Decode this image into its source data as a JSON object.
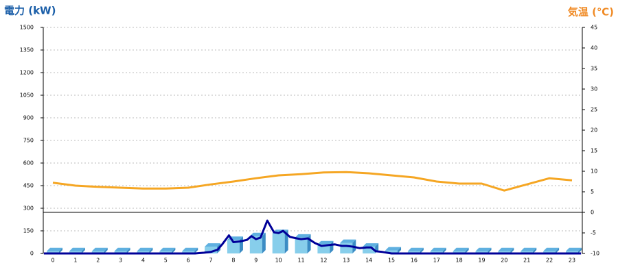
{
  "chart_data": {
    "type": "bar-line",
    "title": "電力 (kW)",
    "y2_title": "気温 (℃)",
    "categories": [
      "0",
      "1",
      "2",
      "3",
      "4",
      "5",
      "6",
      "7",
      "8",
      "9",
      "10",
      "11",
      "12",
      "13",
      "14",
      "15",
      "16",
      "17",
      "18",
      "19",
      "20",
      "21",
      "22",
      "23"
    ],
    "ylim": [
      0,
      1500
    ],
    "yticks": [
      0,
      150,
      300,
      450,
      600,
      750,
      900,
      1050,
      1200,
      1350,
      1500
    ],
    "y2lim": [
      -10,
      45
    ],
    "y2ticks": [
      -10,
      -5,
      0,
      5,
      10,
      15,
      20,
      25,
      30,
      35,
      40,
      45
    ],
    "grid": true,
    "series": [
      {
        "type": "bar",
        "color": "#87ceeb",
        "values": [
          15,
          15,
          15,
          15,
          15,
          15,
          15,
          45,
          90,
          115,
          135,
          105,
          60,
          70,
          45,
          20,
          15,
          15,
          15,
          15,
          15,
          15,
          15,
          15
        ]
      },
      {
        "type": "line",
        "color": "#000099",
        "x": [
          -0.4,
          6.3,
          6.7,
          7,
          7.3,
          7.5,
          7.8,
          8,
          8.3,
          8.6,
          8.8,
          9,
          9.2,
          9.5,
          9.8,
          10,
          10.2,
          10.5,
          10.8,
          11,
          11.3,
          11.6,
          11.9,
          12.2,
          12.5,
          12.8,
          13,
          13.3,
          13.6,
          13.9,
          14.1,
          14.3,
          14.6,
          15,
          23.4
        ],
        "values": [
          0,
          0,
          5,
          10,
          25,
          60,
          120,
          75,
          80,
          90,
          115,
          95,
          105,
          218,
          140,
          135,
          150,
          110,
          100,
          95,
          100,
          70,
          50,
          55,
          60,
          50,
          50,
          45,
          35,
          40,
          40,
          15,
          10,
          0,
          0
        ]
      },
      {
        "type": "line",
        "axis": "y2",
        "color": "#f5a623",
        "values": [
          7.2,
          6.5,
          6.2,
          6,
          5.8,
          5.8,
          6,
          6.8,
          7.5,
          8.3,
          9,
          9.3,
          9.7,
          9.8,
          9.5,
          9,
          8.5,
          7.5,
          7,
          7,
          5.3,
          6.8,
          8.3,
          7.8
        ]
      }
    ]
  }
}
